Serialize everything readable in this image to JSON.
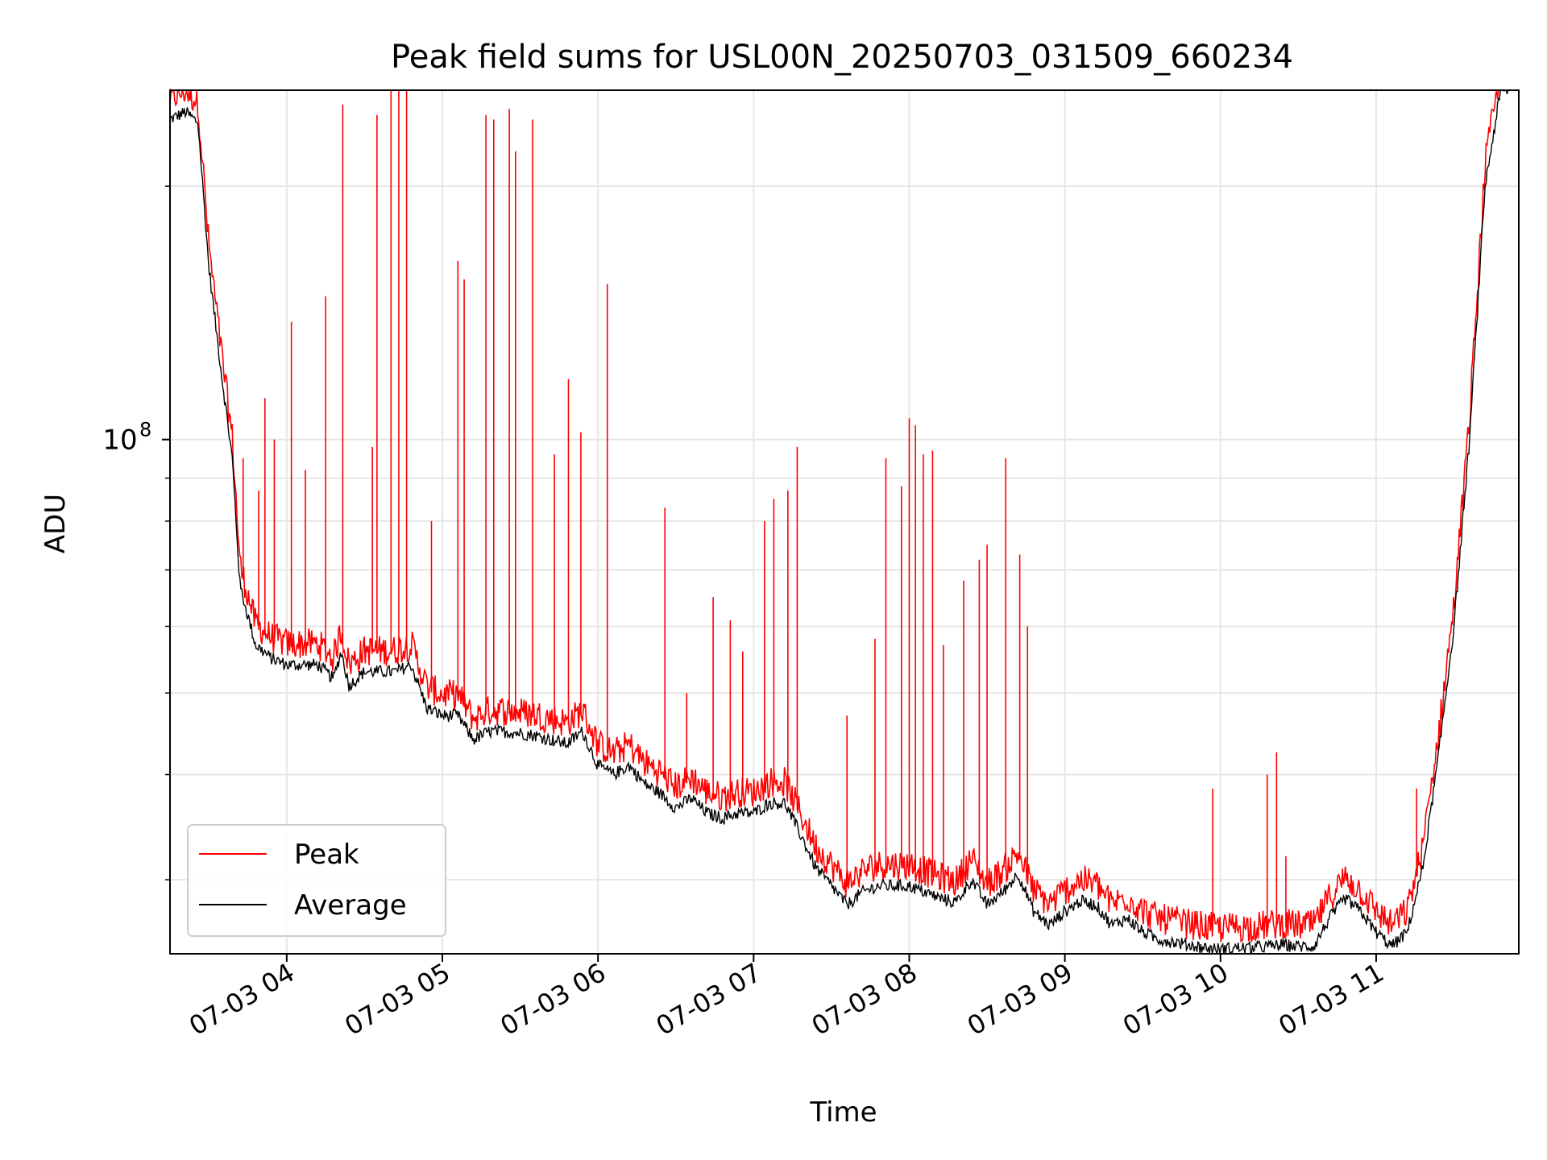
{
  "chart_data": {
    "type": "line",
    "title": "Peak field sums for USL00N_20250703_031509_660234",
    "xlabel": "Time",
    "ylabel": "ADU",
    "yscale": "log",
    "x_ticks": [
      "07-03 04",
      "07-03 05",
      "07-03 06",
      "07-03 07",
      "07-03 08",
      "07-03 09",
      "07-03 10",
      "07-03 11"
    ],
    "y_ticks": [
      {
        "value": 100000000,
        "base": "10",
        "exp": "8"
      }
    ],
    "xlim": [
      "2025-07-03 03:15",
      "2025-07-03 11:55"
    ],
    "ylim": [
      24500000,
      260000000
    ],
    "grid": true,
    "legend": {
      "position": "lower left",
      "entries": [
        {
          "label": "Peak",
          "color": "#ff0000"
        },
        {
          "label": "Average",
          "color": "#000000"
        }
      ]
    },
    "x_unit": "hours since 2025-07-03 00:00",
    "series": [
      {
        "name": "Average",
        "color": "#000000",
        "x": [
          3.25,
          3.35,
          3.43,
          3.5,
          3.58,
          3.65,
          3.7,
          3.8,
          3.9,
          4.0,
          4.1,
          4.2,
          4.3,
          4.35,
          4.4,
          4.5,
          4.6,
          4.7,
          4.8,
          4.9,
          5.0,
          5.1,
          5.2,
          5.3,
          5.4,
          5.5,
          5.6,
          5.7,
          5.8,
          5.9,
          6.0,
          6.1,
          6.2,
          6.3,
          6.4,
          6.5,
          6.6,
          6.7,
          6.8,
          6.9,
          7.0,
          7.1,
          7.2,
          7.3,
          7.4,
          7.5,
          7.6,
          7.7,
          7.8,
          7.9,
          8.0,
          8.1,
          8.2,
          8.3,
          8.4,
          8.5,
          8.6,
          8.7,
          8.8,
          8.9,
          9.0,
          9.1,
          9.2,
          9.3,
          9.4,
          9.5,
          9.6,
          9.7,
          9.8,
          9.9,
          10.0,
          10.1,
          10.2,
          10.3,
          10.4,
          10.5,
          10.6,
          10.7,
          10.8,
          10.9,
          11.0,
          11.1,
          11.2,
          11.3,
          11.4,
          11.5,
          11.6,
          11.7,
          11.8
        ],
        "y": [
          240000000,
          245000000,
          238000000,
          160000000,
          120000000,
          95000000,
          67000000,
          57000000,
          55000000,
          54000000,
          54000000,
          54000000,
          52000000,
          56000000,
          51000000,
          53000000,
          53000000,
          53000000,
          54000000,
          48000000,
          47000000,
          47000000,
          44000000,
          45000000,
          45000000,
          44800000,
          44500000,
          44000000,
          43500000,
          45000000,
          41000000,
          40000000,
          41000000,
          39000000,
          38000000,
          36500000,
          37500000,
          36000000,
          35500000,
          36000000,
          36000000,
          37000000,
          37000000,
          34000000,
          31000000,
          29500000,
          28000000,
          29000000,
          29500000,
          29500000,
          29500000,
          29000000,
          28500000,
          28200000,
          30000000,
          28000000,
          29000000,
          30500000,
          27500000,
          26500000,
          27500000,
          28300000,
          28000000,
          26500000,
          27000000,
          26000000,
          25500000,
          25300000,
          25100000,
          24900000,
          24800000,
          24900000,
          24900000,
          25000000,
          25100000,
          25000000,
          25000000,
          27000000,
          28500000,
          27500000,
          26000000,
          25000000,
          26000000,
          31000000,
          42000000,
          60000000,
          100000000,
          200000000,
          260000000
        ]
      },
      {
        "name": "Peak",
        "color": "#ff0000",
        "spikes": [
          {
            "x": 3.72,
            "y": 95000000
          },
          {
            "x": 3.82,
            "y": 87000000
          },
          {
            "x": 3.86,
            "y": 112000000
          },
          {
            "x": 3.92,
            "y": 100000000
          },
          {
            "x": 4.03,
            "y": 138000000
          },
          {
            "x": 4.12,
            "y": 92000000
          },
          {
            "x": 4.25,
            "y": 148000000
          },
          {
            "x": 4.36,
            "y": 250000000
          },
          {
            "x": 4.55,
            "y": 98000000
          },
          {
            "x": 4.58,
            "y": 243000000
          },
          {
            "x": 4.67,
            "y": 310000000
          },
          {
            "x": 4.72,
            "y": 330000000
          },
          {
            "x": 4.77,
            "y": 340000000
          },
          {
            "x": 4.93,
            "y": 80000000
          },
          {
            "x": 5.1,
            "y": 163000000
          },
          {
            "x": 5.14,
            "y": 155000000
          },
          {
            "x": 5.28,
            "y": 243000000
          },
          {
            "x": 5.33,
            "y": 240000000
          },
          {
            "x": 5.43,
            "y": 247000000
          },
          {
            "x": 5.47,
            "y": 220000000
          },
          {
            "x": 5.58,
            "y": 240000000
          },
          {
            "x": 5.72,
            "y": 96000000
          },
          {
            "x": 5.81,
            "y": 118000000
          },
          {
            "x": 5.89,
            "y": 102000000
          },
          {
            "x": 6.06,
            "y": 153000000
          },
          {
            "x": 6.43,
            "y": 83000000
          },
          {
            "x": 6.57,
            "y": 50000000
          },
          {
            "x": 6.74,
            "y": 65000000
          },
          {
            "x": 6.85,
            "y": 61000000
          },
          {
            "x": 6.93,
            "y": 56000000
          },
          {
            "x": 7.07,
            "y": 80000000
          },
          {
            "x": 7.13,
            "y": 85000000
          },
          {
            "x": 7.22,
            "y": 87000000
          },
          {
            "x": 7.28,
            "y": 98000000
          },
          {
            "x": 7.6,
            "y": 47000000
          },
          {
            "x": 7.78,
            "y": 58000000
          },
          {
            "x": 7.85,
            "y": 95000000
          },
          {
            "x": 7.95,
            "y": 88000000
          },
          {
            "x": 8.0,
            "y": 106000000
          },
          {
            "x": 8.04,
            "y": 104000000
          },
          {
            "x": 8.09,
            "y": 96000000
          },
          {
            "x": 8.15,
            "y": 97000000
          },
          {
            "x": 8.22,
            "y": 57000000
          },
          {
            "x": 8.35,
            "y": 68000000
          },
          {
            "x": 8.45,
            "y": 72000000
          },
          {
            "x": 8.5,
            "y": 75000000
          },
          {
            "x": 8.62,
            "y": 95000000
          },
          {
            "x": 8.71,
            "y": 73000000
          },
          {
            "x": 8.76,
            "y": 60000000
          },
          {
            "x": 9.95,
            "y": 38500000
          },
          {
            "x": 10.3,
            "y": 40000000
          },
          {
            "x": 10.36,
            "y": 42500000
          },
          {
            "x": 10.42,
            "y": 32000000
          },
          {
            "x": 11.26,
            "y": 38500000
          }
        ]
      }
    ]
  }
}
